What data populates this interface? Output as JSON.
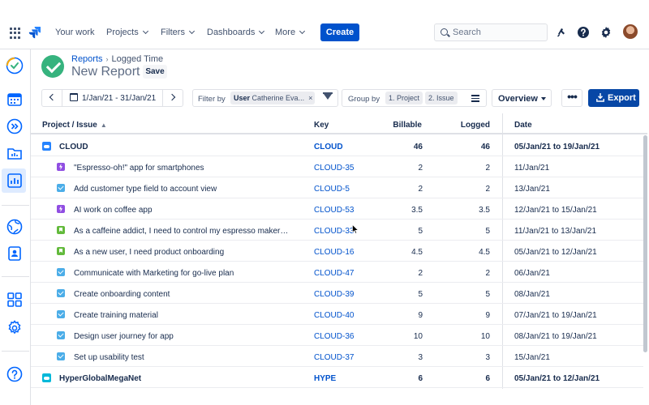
{
  "nav": {
    "items": [
      {
        "label": "Your work",
        "dropdown": false
      },
      {
        "label": "Projects",
        "dropdown": true
      },
      {
        "label": "Filters",
        "dropdown": true
      },
      {
        "label": "Dashboards",
        "dropdown": true
      },
      {
        "label": "More",
        "dropdown": true
      }
    ],
    "create_label": "Create",
    "search_placeholder": "Search"
  },
  "header": {
    "breadcrumb": [
      "Reports",
      "Logged Time"
    ],
    "title": "New Report",
    "save_label": "Save"
  },
  "toolbar": {
    "date_range": "1/Jan/21 - 31/Jan/21",
    "filter_label": "Filter by",
    "filter_chip_key": "User",
    "filter_chip_value": "Catherine Eva...",
    "group_label": "Group by",
    "group_chips": [
      "1. Project",
      "2. Issue"
    ],
    "view_label": "Overview",
    "more_label": "•••",
    "export_label": "Export"
  },
  "table": {
    "columns": {
      "name": "Project / Issue",
      "key": "Key",
      "billable": "Billable",
      "logged": "Logged",
      "date": "Date"
    },
    "rows": [
      {
        "kind": "project",
        "icon": "cloud-project-icon",
        "name": "CLOUD",
        "key": "CLOUD",
        "billable": "46",
        "logged": "46",
        "date": "05/Jan/21 to 19/Jan/21"
      },
      {
        "kind": "issue",
        "type": "subtask",
        "name": "\"Espresso-oh!\" app for smartphones",
        "key": "CLOUD-35",
        "billable": "2",
        "logged": "2",
        "date": "11/Jan/21"
      },
      {
        "kind": "issue",
        "type": "task",
        "name": "Add customer type field to account view",
        "key": "CLOUD-5",
        "billable": "2",
        "logged": "2",
        "date": "13/Jan/21"
      },
      {
        "kind": "issue",
        "type": "subtask",
        "name": "AI work on coffee app",
        "key": "CLOUD-53",
        "billable": "3.5",
        "logged": "3.5",
        "date": "12/Jan/21 to 15/Jan/21"
      },
      {
        "kind": "issue",
        "type": "story",
        "name": "As a caffeine addict, I need to control my espresso maker wit...",
        "key": "CLOUD-33",
        "billable": "5",
        "logged": "5",
        "date": "11/Jan/21 to 13/Jan/21"
      },
      {
        "kind": "issue",
        "type": "story",
        "name": "As a new user, I need product onboarding",
        "key": "CLOUD-16",
        "billable": "4.5",
        "logged": "4.5",
        "date": "05/Jan/21 to 12/Jan/21"
      },
      {
        "kind": "issue",
        "type": "task",
        "name": "Communicate with Marketing for go-live plan",
        "key": "CLOUD-47",
        "billable": "2",
        "logged": "2",
        "date": "06/Jan/21"
      },
      {
        "kind": "issue",
        "type": "task",
        "name": "Create onboarding content",
        "key": "CLOUD-39",
        "billable": "5",
        "logged": "5",
        "date": "08/Jan/21"
      },
      {
        "kind": "issue",
        "type": "task",
        "name": "Create training material",
        "key": "CLOUD-40",
        "billable": "9",
        "logged": "9",
        "date": "07/Jan/21 to 19/Jan/21"
      },
      {
        "kind": "issue",
        "type": "task",
        "name": "Design user journey for app",
        "key": "CLOUD-36",
        "billable": "10",
        "logged": "10",
        "date": "08/Jan/21 to 19/Jan/21"
      },
      {
        "kind": "issue",
        "type": "task",
        "name": "Set up usability test",
        "key": "CLOUD-37",
        "billable": "3",
        "logged": "3",
        "date": "15/Jan/21"
      },
      {
        "kind": "project",
        "icon": "hype-project-icon",
        "name": "HyperGlobalMegaNet",
        "key": "HYPE",
        "billable": "6",
        "logged": "6",
        "date": "05/Jan/21 to 12/Jan/21"
      }
    ]
  },
  "colors": {
    "primary": "#0052CC",
    "export": "#0747A6",
    "success": "#36B37E",
    "task": "#4BADE8",
    "story": "#63BA3C",
    "subtask": "#904EE2"
  }
}
